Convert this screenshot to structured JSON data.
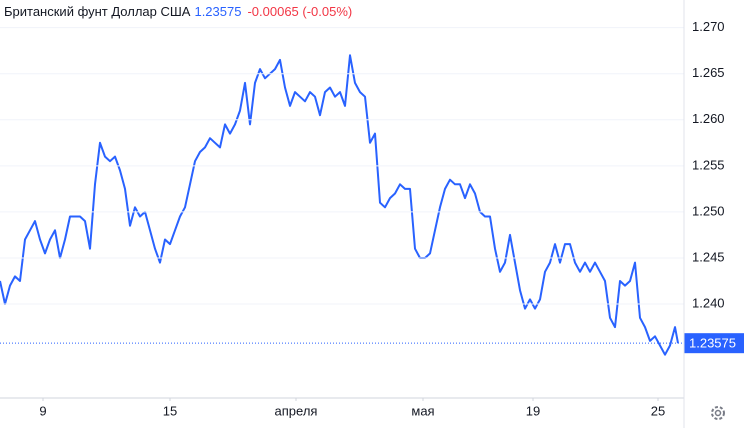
{
  "header": {
    "name": "Британский фунт Доллар США",
    "price": "1.23575",
    "change": "-0.00065 (-0.05%)"
  },
  "chart_data": {
    "type": "line",
    "x": [
      0,
      1,
      2,
      3,
      4,
      5,
      6,
      7,
      8,
      9,
      10,
      11,
      12,
      13,
      14,
      15,
      16,
      17,
      18,
      19,
      20,
      21,
      22,
      23,
      24,
      25,
      26,
      27,
      28,
      29,
      30,
      31,
      32,
      33,
      34,
      35,
      36,
      37,
      38,
      39,
      40,
      41,
      42,
      43,
      44,
      45,
      46,
      47,
      48,
      49,
      50,
      51,
      52,
      53,
      54,
      55,
      56,
      57,
      58,
      59,
      60,
      61,
      62,
      63,
      64,
      65,
      66,
      67,
      68,
      69,
      70,
      71,
      72,
      73,
      74,
      75,
      76,
      77,
      78,
      79,
      80,
      81,
      82,
      83,
      84,
      85,
      86,
      87,
      88,
      89,
      90,
      91,
      92,
      93,
      94,
      95,
      96,
      97,
      98,
      99,
      100,
      101,
      102,
      103,
      104,
      105,
      106,
      107,
      108,
      109,
      110,
      111,
      112,
      113,
      114,
      115,
      116,
      117,
      118,
      119,
      120,
      121,
      122,
      123,
      124,
      125,
      126,
      127,
      128,
      129,
      130,
      131,
      132,
      133,
      134,
      135,
      135.6
    ],
    "series": [
      {
        "name": "GBP/USD",
        "color": "#2962ff",
        "values": [
          1.2425,
          1.24,
          1.242,
          1.243,
          1.2425,
          1.247,
          1.248,
          1.249,
          1.247,
          1.2455,
          1.247,
          1.248,
          1.245,
          1.247,
          1.2495,
          1.2495,
          1.2495,
          1.249,
          1.246,
          1.253,
          1.2575,
          1.256,
          1.2555,
          1.256,
          1.2545,
          1.2525,
          1.2485,
          1.2505,
          1.2495,
          1.25,
          1.248,
          1.246,
          1.2445,
          1.247,
          1.2465,
          1.248,
          1.2495,
          1.2505,
          1.253,
          1.2555,
          1.2565,
          1.257,
          1.258,
          1.2575,
          1.257,
          1.2595,
          1.2585,
          1.2595,
          1.261,
          1.264,
          1.2595,
          1.264,
          1.2655,
          1.2645,
          1.265,
          1.2655,
          1.2665,
          1.2635,
          1.2615,
          1.263,
          1.2625,
          1.262,
          1.263,
          1.2625,
          1.2605,
          1.263,
          1.2635,
          1.2625,
          1.263,
          1.2615,
          1.267,
          1.264,
          1.263,
          1.2625,
          1.2575,
          1.2585,
          1.251,
          1.2505,
          1.2515,
          1.252,
          1.253,
          1.2525,
          1.2525,
          1.246,
          1.245,
          1.245,
          1.2455,
          1.248,
          1.2505,
          1.2525,
          1.2535,
          1.253,
          1.253,
          1.2515,
          1.253,
          1.252,
          1.25,
          1.2495,
          1.2495,
          1.246,
          1.2435,
          1.2445,
          1.2475,
          1.2445,
          1.2415,
          1.2395,
          1.2405,
          1.2395,
          1.2405,
          1.2435,
          1.2445,
          1.2465,
          1.2445,
          1.2465,
          1.2465,
          1.2445,
          1.2435,
          1.2445,
          1.2435,
          1.2445,
          1.2435,
          1.2425,
          1.2385,
          1.2375,
          1.2425,
          1.242,
          1.2425,
          1.2445,
          1.2385,
          1.2375,
          1.236,
          1.2365,
          1.2355,
          1.2345,
          1.2355,
          1.2375,
          1.23575
        ]
      }
    ],
    "xlim": [
      0,
      136.8
    ],
    "xticks": [
      {
        "value": 8.6,
        "label": "9"
      },
      {
        "value": 34,
        "label": "15"
      },
      {
        "value": 59.2,
        "label": "апреля"
      },
      {
        "value": 84.6,
        "label": "мая"
      },
      {
        "value": 106.6,
        "label": "19"
      },
      {
        "value": 131.6,
        "label": "25"
      }
    ],
    "ylim": [
      1.2298,
      1.273
    ],
    "yticks": [
      {
        "value": 1.24,
        "label": "1.240"
      },
      1.245,
      {
        "value": 1.25,
        "label": "1.250"
      },
      1.255,
      {
        "value": 1.26,
        "label": "1.260"
      },
      1.265,
      {
        "value": 1.27,
        "label": "1.270"
      }
    ],
    "grid": true
  }
}
